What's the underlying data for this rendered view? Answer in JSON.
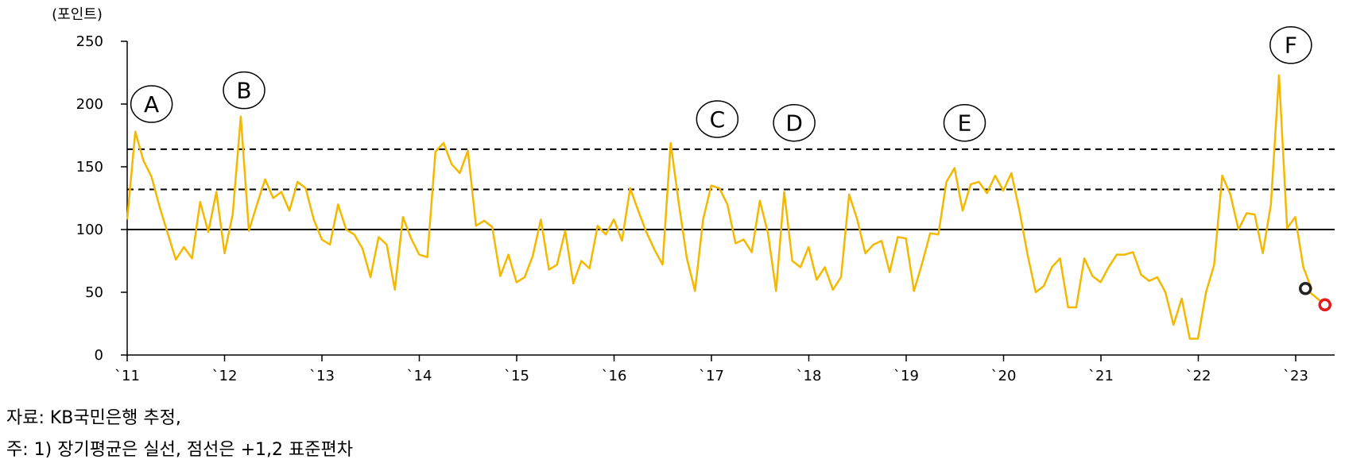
{
  "chart_data": {
    "type": "line",
    "y_unit_label": "(포인트)",
    "ylim": [
      0,
      250
    ],
    "y_ticks": [
      0,
      50,
      100,
      150,
      200,
      250
    ],
    "xlim": [
      2011,
      2023.4
    ],
    "x_ticks": [
      {
        "label": "`11",
        "x": 2011
      },
      {
        "label": "`12",
        "x": 2012
      },
      {
        "label": "`13",
        "x": 2013
      },
      {
        "label": "`14",
        "x": 2014
      },
      {
        "label": "`15",
        "x": 2015
      },
      {
        "label": "`16",
        "x": 2016
      },
      {
        "label": "`17",
        "x": 2017
      },
      {
        "label": "`18",
        "x": 2018
      },
      {
        "label": "`19",
        "x": 2019
      },
      {
        "label": "`20",
        "x": 2020
      },
      {
        "label": "`21",
        "x": 2021
      },
      {
        "label": "`22",
        "x": 2022
      },
      {
        "label": "`23",
        "x": 2023
      }
    ],
    "reference_lines": [
      {
        "y": 100,
        "style": "solid"
      },
      {
        "y": 132,
        "style": "dashed"
      },
      {
        "y": 164,
        "style": "dashed"
      }
    ],
    "series": [
      {
        "color": "#F5B800",
        "x_start": 2011,
        "x_step": 0.0833,
        "values": [
          108,
          178,
          155,
          142,
          118,
          97,
          76,
          86,
          77,
          122,
          98,
          130,
          81,
          112,
          190,
          99,
          120,
          140,
          125,
          130,
          115,
          138,
          133,
          108,
          92,
          88,
          120,
          100,
          96,
          85,
          62,
          94,
          88,
          52,
          110,
          93,
          80,
          78,
          162,
          169,
          152,
          145,
          163,
          103,
          107,
          102,
          63,
          80,
          58,
          62,
          79,
          108,
          68,
          72,
          99,
          57,
          75,
          69,
          103,
          96,
          108,
          91,
          133,
          115,
          98,
          84,
          72,
          169,
          121,
          77,
          51,
          108,
          135,
          133,
          120,
          89,
          92,
          82,
          123,
          97,
          51,
          130,
          75,
          70,
          86,
          60,
          70,
          52,
          62,
          128,
          108,
          81,
          88,
          91,
          66,
          94,
          93,
          51,
          73,
          97,
          96,
          138,
          149,
          115,
          136,
          138,
          129,
          143,
          131,
          145,
          115,
          80,
          50,
          55,
          70,
          77,
          38,
          38,
          77,
          63,
          58,
          70,
          80,
          80,
          82,
          64,
          59,
          62,
          50,
          24,
          45,
          13,
          13,
          50,
          72,
          143,
          128,
          100,
          113,
          112,
          81,
          120,
          223,
          101,
          110,
          70,
          53
        ]
      }
    ],
    "markers": [
      {
        "x": 2023.1,
        "y": 53,
        "color": "#222222"
      },
      {
        "x": 2023.3,
        "y": 40,
        "color": "#E8191A"
      }
    ],
    "annotations": [
      {
        "label": "A",
        "x": 2011.25,
        "y": 200
      },
      {
        "label": "B",
        "x": 2012.2,
        "y": 211
      },
      {
        "label": "C",
        "x": 2017.06,
        "y": 188
      },
      {
        "label": "D",
        "x": 2017.85,
        "y": 185
      },
      {
        "label": "E",
        "x": 2019.6,
        "y": 185
      },
      {
        "label": "F",
        "x": 2022.95,
        "y": 247
      }
    ],
    "grid": false,
    "legend": "none"
  },
  "notes": {
    "source": "자료: KB국민은행 추정,",
    "footnote": "주: 1) 장기평균은 실선, 점선은 +1,2 표준편차"
  }
}
